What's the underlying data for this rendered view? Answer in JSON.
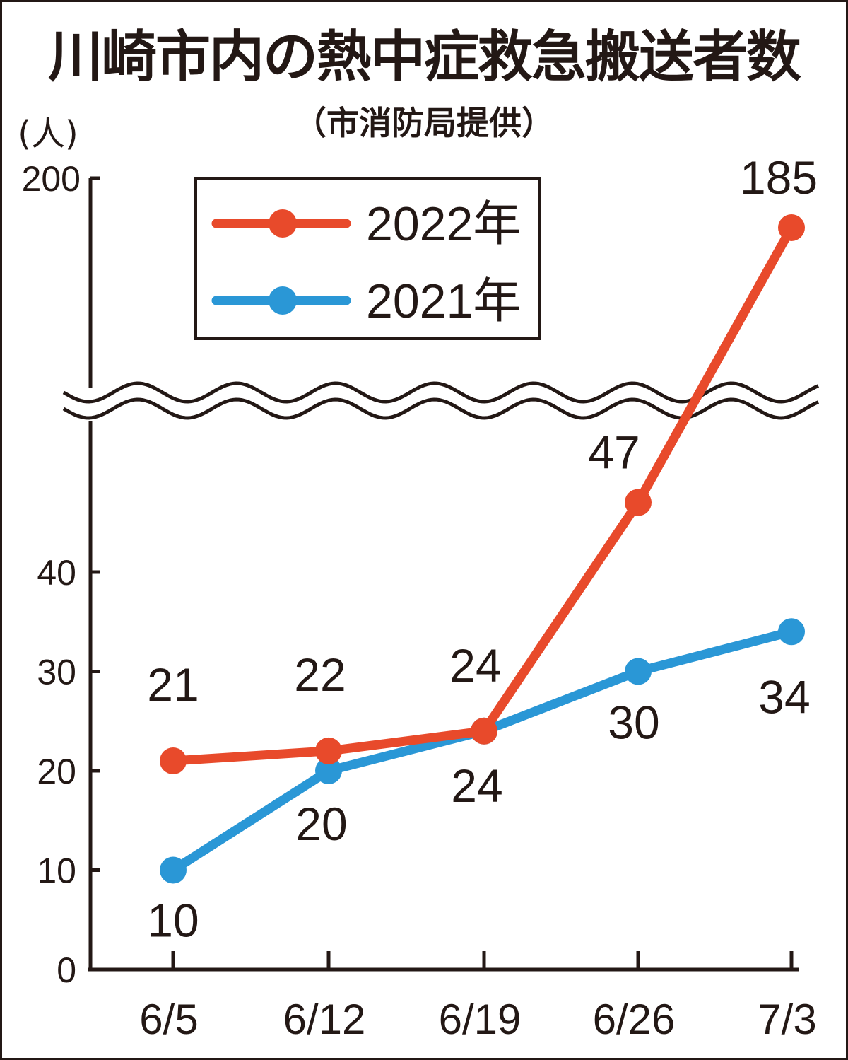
{
  "title": "川崎市内の熱中症救急搬送者数",
  "subtitle": "（市消防局提供）",
  "chart_data": {
    "type": "line",
    "unit_label": "(人)",
    "categories": [
      "6/5",
      "6/12",
      "6/19",
      "6/26",
      "7/3"
    ],
    "y_ticks": [
      "0",
      "10",
      "20",
      "30",
      "40",
      "200"
    ],
    "axis_break": true,
    "ylim": [
      0,
      200
    ],
    "legend_position": "top",
    "series": [
      {
        "name": "2022年",
        "color": "#e84a2b",
        "values": [
          21,
          22,
          24,
          47,
          185
        ],
        "labels": [
          "21",
          "22",
          "24",
          "47",
          "185"
        ]
      },
      {
        "name": "2021年",
        "color": "#2a97d6",
        "values": [
          10,
          20,
          24,
          30,
          34
        ],
        "labels": [
          "10",
          "20",
          "24",
          "30",
          "34"
        ]
      }
    ]
  }
}
